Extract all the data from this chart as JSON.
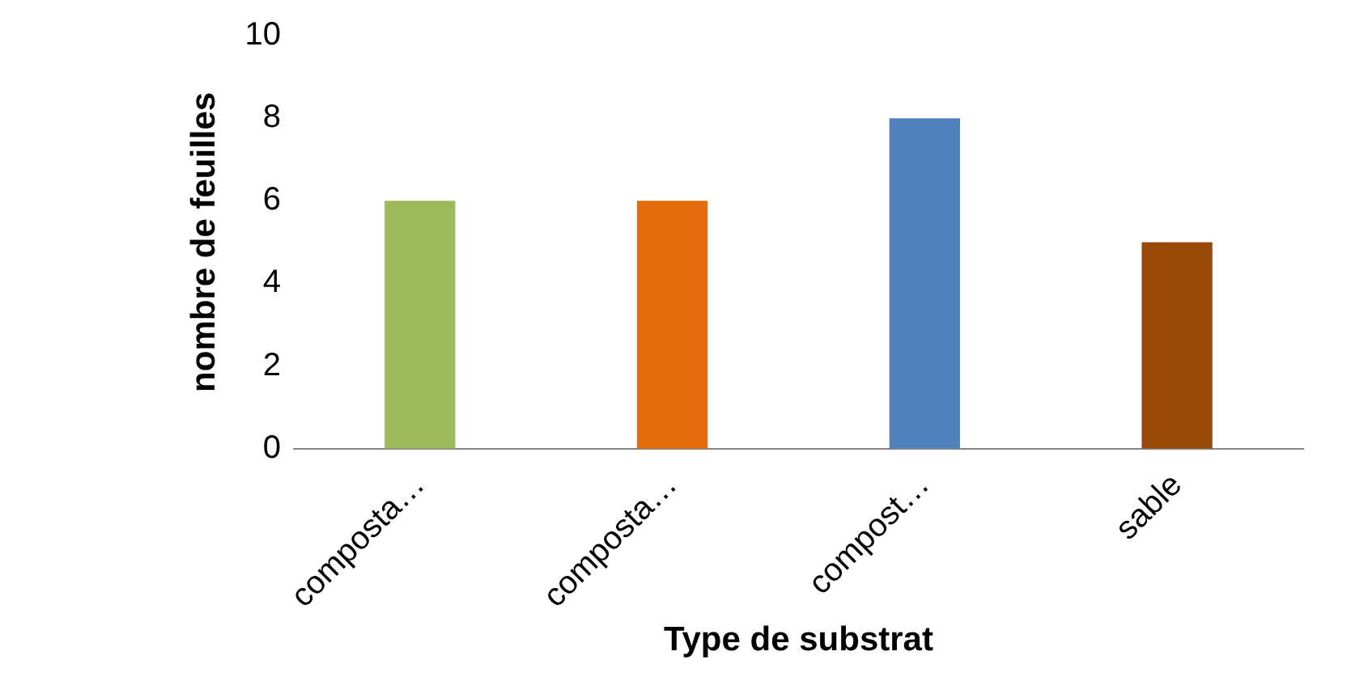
{
  "chart_data": {
    "type": "bar",
    "xlabel": "Type de substrat",
    "ylabel": "nombre de feuilles",
    "categories": [
      "composta…",
      "composta…",
      "compost…",
      "sable"
    ],
    "values": [
      6,
      6,
      8,
      5
    ],
    "colors": [
      "#9bbb59",
      "#e46c0a",
      "#4f81bd",
      "#984807"
    ],
    "ylim": [
      0,
      10
    ],
    "yticks": [
      0,
      2,
      4,
      6,
      8,
      10
    ],
    "grid": false,
    "legend": false
  }
}
